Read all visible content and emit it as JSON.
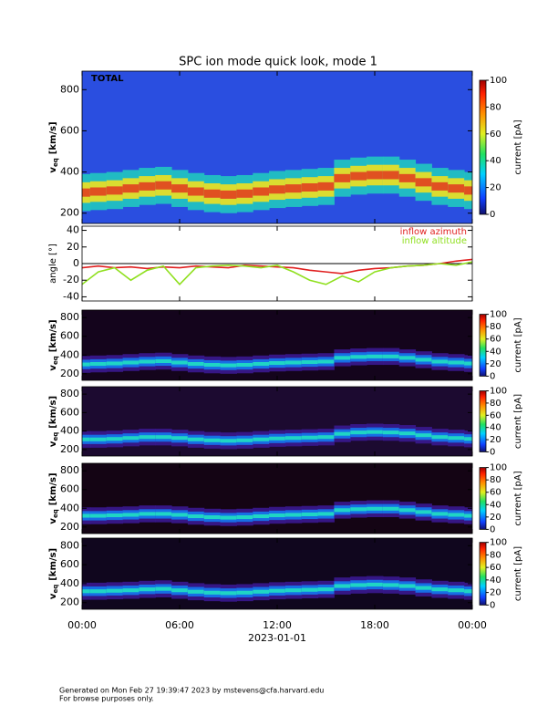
{
  "title": "SPC ion mode quick look, mode 1",
  "footer": [
    "Generated on Mon Feb 27 19:39:47 2023 by mstevens@cfa.harvard.edu",
    "For browse purposes only."
  ],
  "chart_data": [
    {
      "type": "spectrogram",
      "label": "TOTAL",
      "ylabel": [
        "v",
        "eq",
        "[km/s]"
      ],
      "x": [
        0,
        1,
        2,
        3,
        4,
        5,
        6,
        7,
        8,
        9,
        10,
        11,
        12,
        13,
        14,
        15,
        16,
        17,
        18,
        19,
        20,
        21,
        22,
        23,
        24
      ],
      "values": [
        300,
        305,
        310,
        320,
        330,
        335,
        320,
        305,
        295,
        290,
        295,
        305,
        315,
        320,
        325,
        330,
        370,
        380,
        385,
        385,
        370,
        350,
        330,
        320,
        310
      ],
      "xlim": [
        0,
        24
      ],
      "xticks": [
        {
          "value": 0,
          "label": "00:00"
        },
        {
          "value": 6,
          "label": "06:00"
        },
        {
          "value": 12,
          "label": "12:00"
        },
        {
          "value": 18,
          "label": "18:00"
        },
        {
          "value": 24,
          "label": "00:00"
        }
      ],
      "ylim": [
        150,
        890
      ],
      "yticks": [
        200,
        400,
        600,
        800
      ],
      "colorbar": {
        "label": "current [pA]",
        "zlim": [
          0,
          100
        ],
        "zticks": [
          0,
          20,
          40,
          60,
          80,
          100
        ]
      },
      "background": "#2a4ee0",
      "colors": [
        "#20c8c0",
        "#f0e020",
        "#e04020"
      ]
    },
    {
      "type": "line",
      "ylabel": "angle [°]",
      "x": [
        0,
        1,
        2,
        3,
        4,
        5,
        6,
        7,
        8,
        9,
        10,
        11,
        12,
        13,
        14,
        15,
        16,
        17,
        18,
        19,
        20,
        21,
        22,
        23,
        24
      ],
      "series": [
        {
          "name": "inflow azimuth",
          "color": "#e02020",
          "values": [
            -5,
            -3,
            -5,
            -4,
            -6,
            -4,
            -5,
            -3,
            -4,
            -5,
            -2,
            -3,
            -4,
            -5,
            -8,
            -10,
            -12,
            -8,
            -6,
            -5,
            -3,
            -2,
            0,
            3,
            5
          ]
        },
        {
          "name": "inflow altitude",
          "color": "#90e020",
          "values": [
            -25,
            -10,
            -5,
            -20,
            -8,
            -3,
            -25,
            -5,
            -3,
            -2,
            -3,
            -5,
            -2,
            -10,
            -20,
            -25,
            -15,
            -22,
            -10,
            -5,
            -3,
            -2,
            0,
            -2,
            2
          ]
        }
      ],
      "xlim": [
        0,
        24
      ],
      "xticks": [
        {
          "value": 0,
          "label": "00:00"
        },
        {
          "value": 6,
          "label": "06:00"
        },
        {
          "value": 12,
          "label": "12:00"
        },
        {
          "value": 18,
          "label": "18:00"
        },
        {
          "value": 24,
          "label": "00:00"
        }
      ],
      "ylim": [
        -45,
        45
      ],
      "yticks": [
        -40,
        -20,
        0,
        20,
        40
      ]
    },
    {
      "type": "spectrogram",
      "ylabel": [
        "v",
        "eq",
        "[km/s]"
      ],
      "x": [
        0,
        1,
        2,
        3,
        4,
        5,
        6,
        7,
        8,
        9,
        10,
        11,
        12,
        13,
        14,
        15,
        16,
        17,
        18,
        19,
        20,
        21,
        22,
        23,
        24
      ],
      "values": [
        300,
        305,
        310,
        320,
        330,
        335,
        320,
        305,
        295,
        290,
        295,
        305,
        315,
        320,
        325,
        330,
        370,
        380,
        385,
        385,
        370,
        350,
        330,
        320,
        310
      ],
      "xlim": [
        0,
        24
      ],
      "xticks": [
        {
          "value": 0,
          "label": "00:00"
        },
        {
          "value": 6,
          "label": "06:00"
        },
        {
          "value": 12,
          "label": "12:00"
        },
        {
          "value": 18,
          "label": "18:00"
        },
        {
          "value": 24,
          "label": "00:00"
        }
      ],
      "ylim": [
        130,
        880
      ],
      "yticks": [
        200,
        400,
        600,
        800
      ],
      "colorbar": {
        "label": "current [pA]",
        "zlim": [
          0,
          100
        ],
        "zticks": [
          0,
          20,
          40,
          60,
          80,
          100
        ]
      },
      "background": "#14041c",
      "colors": [
        "#3a1890",
        "#1478f0",
        "#20e0c0"
      ]
    },
    {
      "type": "spectrogram",
      "ylabel": [
        "v",
        "eq",
        "[km/s]"
      ],
      "x": [
        0,
        1,
        2,
        3,
        4,
        5,
        6,
        7,
        8,
        9,
        10,
        11,
        12,
        13,
        14,
        15,
        16,
        17,
        18,
        19,
        20,
        21,
        22,
        23,
        24
      ],
      "values": [
        310,
        310,
        315,
        325,
        335,
        335,
        325,
        310,
        300,
        295,
        300,
        310,
        320,
        325,
        330,
        335,
        370,
        385,
        390,
        385,
        375,
        355,
        335,
        325,
        315
      ],
      "xlim": [
        0,
        24
      ],
      "xticks": [
        {
          "value": 0,
          "label": "00:00"
        },
        {
          "value": 6,
          "label": "06:00"
        },
        {
          "value": 12,
          "label": "12:00"
        },
        {
          "value": 18,
          "label": "18:00"
        },
        {
          "value": 24,
          "label": "00:00"
        }
      ],
      "ylim": [
        130,
        880
      ],
      "yticks": [
        200,
        400,
        600,
        800
      ],
      "colorbar": {
        "label": "current [pA]",
        "zlim": [
          0,
          100
        ],
        "zticks": [
          0,
          20,
          40,
          60,
          80,
          100
        ]
      },
      "background": "#1c0a30",
      "colors": [
        "#3a1890",
        "#1478f0",
        "#20e0c0"
      ]
    },
    {
      "type": "spectrogram",
      "ylabel": [
        "v",
        "eq",
        "[km/s]"
      ],
      "x": [
        0,
        1,
        2,
        3,
        4,
        5,
        6,
        7,
        8,
        9,
        10,
        11,
        12,
        13,
        14,
        15,
        16,
        17,
        18,
        19,
        20,
        21,
        22,
        23,
        24
      ],
      "values": [
        320,
        320,
        325,
        330,
        340,
        340,
        330,
        315,
        305,
        300,
        305,
        315,
        325,
        330,
        335,
        340,
        380,
        390,
        395,
        395,
        380,
        360,
        340,
        330,
        320
      ],
      "xlim": [
        0,
        24
      ],
      "xticks": [
        {
          "value": 0,
          "label": "00:00"
        },
        {
          "value": 6,
          "label": "06:00"
        },
        {
          "value": 12,
          "label": "12:00"
        },
        {
          "value": 18,
          "label": "18:00"
        },
        {
          "value": 24,
          "label": "00:00"
        }
      ],
      "ylim": [
        130,
        880
      ],
      "yticks": [
        200,
        400,
        600,
        800
      ],
      "colorbar": {
        "label": "current [pA]",
        "zlim": [
          0,
          100
        ],
        "zticks": [
          0,
          20,
          40,
          60,
          80,
          100
        ]
      },
      "background": "#140414",
      "colors": [
        "#3a1890",
        "#1478f0",
        "#20e0c0"
      ]
    },
    {
      "type": "spectrogram",
      "ylabel": [
        "v",
        "eq",
        "[km/s]"
      ],
      "xlabel": "2023-01-01",
      "x": [
        0,
        1,
        2,
        3,
        4,
        5,
        6,
        7,
        8,
        9,
        10,
        11,
        12,
        13,
        14,
        15,
        16,
        17,
        18,
        19,
        20,
        21,
        22,
        23,
        24
      ],
      "values": [
        320,
        320,
        325,
        330,
        340,
        345,
        330,
        315,
        305,
        300,
        305,
        315,
        325,
        330,
        335,
        340,
        375,
        385,
        390,
        385,
        375,
        355,
        340,
        330,
        320
      ],
      "xlim": [
        0,
        24
      ],
      "xticks": [
        {
          "value": 0,
          "label": "00:00"
        },
        {
          "value": 6,
          "label": "06:00"
        },
        {
          "value": 12,
          "label": "12:00"
        },
        {
          "value": 18,
          "label": "18:00"
        },
        {
          "value": 24,
          "label": "00:00"
        }
      ],
      "ylim": [
        130,
        880
      ],
      "yticks": [
        200,
        400,
        600,
        800
      ],
      "colorbar": {
        "label": "current [pA]",
        "zlim": [
          0,
          100
        ],
        "zticks": [
          0,
          20,
          40,
          60,
          80,
          100
        ]
      },
      "background": "#10061e",
      "colors": [
        "#3a1890",
        "#1478f0",
        "#20e0c0"
      ]
    }
  ]
}
